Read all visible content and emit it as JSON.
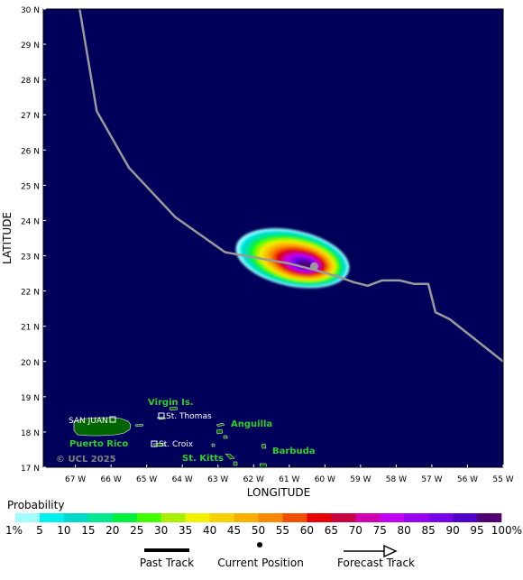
{
  "map": {
    "axes": {
      "x_label": "LONGITUDE",
      "y_label": "LATITUDE",
      "x_ticks": [
        "67 W",
        "66 W",
        "65 W",
        "64 W",
        "63 W",
        "62 W",
        "61 W",
        "60 W",
        "59 W",
        "58 W",
        "57 W",
        "56 W",
        "55 W"
      ],
      "y_ticks": [
        "30 N",
        "29 N",
        "28 N",
        "27 N",
        "26 N",
        "25 N",
        "24 N",
        "23 N",
        "22 N",
        "21 N",
        "20 N",
        "19 N",
        "18 N",
        "17 N"
      ]
    },
    "copyright": "© UCL 2025",
    "place_labels": {
      "san_juan": "SAN JUAN",
      "puerto_rico": "Puerto Rico",
      "virgin_islands": "Virgin Is.",
      "st_thomas": "St. Thomas",
      "st_croix": "St. Croix",
      "anguilla": "Anguilla",
      "barbuda": "Barbuda",
      "st_kitts": "St. Kitts"
    },
    "track_points_lonlat": [
      [
        -66.88,
        30.0
      ],
      [
        -66.4,
        27.1
      ],
      [
        -65.5,
        25.5
      ],
      [
        -64.2,
        24.1
      ],
      [
        -62.8,
        23.1
      ],
      [
        -61.7,
        22.9
      ],
      [
        -61.0,
        22.78
      ],
      [
        -60.3,
        22.6
      ],
      [
        -59.6,
        22.4
      ],
      [
        -59.2,
        22.25
      ],
      [
        -58.8,
        22.15
      ],
      [
        -58.4,
        22.3
      ],
      [
        -57.9,
        22.3
      ],
      [
        -57.5,
        22.2
      ],
      [
        -57.1,
        22.2
      ],
      [
        -56.9,
        21.4
      ],
      [
        -56.5,
        21.2
      ],
      [
        -56.0,
        20.8
      ],
      [
        -55.5,
        20.4
      ],
      [
        -55.0,
        20.0
      ]
    ],
    "current_position_lonlat": [
      -60.3,
      22.7
    ],
    "colors": {
      "ocean": "#00005a",
      "land": "#006400",
      "label_green": "#2bd12b",
      "track": "#9a9a9a"
    }
  },
  "legend": {
    "title": "Probability",
    "ticks": [
      "1%",
      "5",
      "10",
      "15",
      "20",
      "25",
      "30",
      "35",
      "40",
      "45",
      "50",
      "55",
      "60",
      "65",
      "70",
      "75",
      "80",
      "85",
      "90",
      "95",
      "100%"
    ],
    "colors": [
      "#a0ffff",
      "#00f0f0",
      "#00d8c8",
      "#00e890",
      "#00f040",
      "#40ff00",
      "#a8f000",
      "#f0f000",
      "#f8d000",
      "#f8b000",
      "#f88800",
      "#f05000",
      "#e80000",
      "#c80040",
      "#d000b0",
      "#c000f0",
      "#9800f0",
      "#7800e8",
      "#5000c8",
      "#500070"
    ],
    "keys": {
      "past_track": "Past Track",
      "current_position": "Current Position",
      "forecast_track": "Forecast Track"
    }
  }
}
